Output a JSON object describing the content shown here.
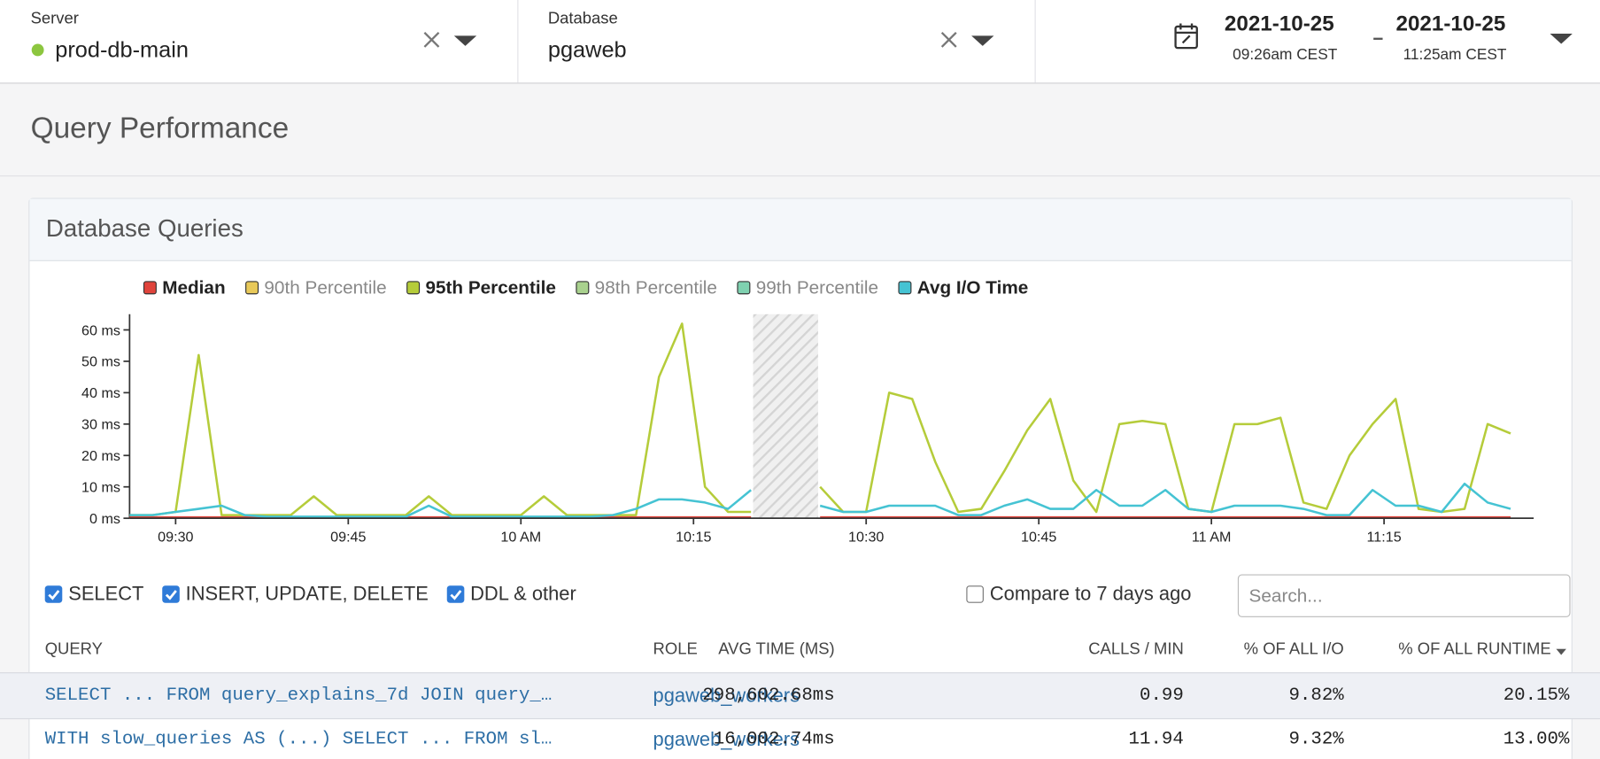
{
  "header": {
    "server": {
      "label": "Server",
      "value": "prod-db-main"
    },
    "database": {
      "label": "Database",
      "value": "pgaweb"
    },
    "date_range": {
      "start_date": "2021-10-25",
      "start_time": "09:26am CEST",
      "end_date": "2021-10-25",
      "end_time": "11:25am CEST"
    }
  },
  "page_title": "Query Performance",
  "panel_title": "Database Queries",
  "chart_data": {
    "type": "line",
    "x": [
      566,
      568,
      570,
      572,
      574,
      576,
      578,
      580,
      582,
      584,
      586,
      588,
      590,
      592,
      594,
      596,
      598,
      600,
      602,
      604,
      606,
      608,
      610,
      612,
      614,
      616,
      618,
      620,
      622,
      624,
      626,
      628,
      630,
      632,
      634,
      636,
      638,
      640,
      642,
      644,
      646,
      648,
      650,
      652,
      654,
      656,
      658,
      660,
      662,
      664,
      666,
      668,
      670,
      672,
      674,
      676,
      678,
      680,
      682,
      684,
      686
    ],
    "series": [
      {
        "name": "Median",
        "color": "#e0443c",
        "visible": true,
        "values": [
          0.3,
          0.3,
          0.3,
          0.3,
          0.3,
          0.3,
          0.3,
          0.3,
          0.3,
          0.3,
          0.3,
          0.3,
          0.3,
          0.3,
          0.3,
          0.3,
          0.3,
          0.3,
          0.3,
          0.3,
          0.3,
          0.3,
          0.3,
          0.3,
          0.3,
          0.3,
          0.3,
          0.3,
          null,
          null,
          0.3,
          0.3,
          0.3,
          0.3,
          0.3,
          0.3,
          0.3,
          0.3,
          0.3,
          0.3,
          0.3,
          0.3,
          0.3,
          0.3,
          0.3,
          0.3,
          0.3,
          0.3,
          0.3,
          0.3,
          0.3,
          0.3,
          0.3,
          0.3,
          0.3,
          0.3,
          0.3,
          0.3,
          0.3,
          0.3,
          0.3
        ]
      },
      {
        "name": "90th Percentile",
        "color": "#e8c95a",
        "visible": false
      },
      {
        "name": "95th Percentile",
        "color": "#b5cc3a",
        "visible": true,
        "values": [
          1,
          1,
          2,
          52,
          1,
          1,
          1,
          1,
          7,
          1,
          1,
          1,
          1,
          7,
          1,
          1,
          1,
          1,
          7,
          1,
          1,
          1,
          1,
          45,
          62,
          10,
          2,
          2,
          null,
          null,
          10,
          2,
          2,
          40,
          38,
          18,
          2,
          3,
          15,
          28,
          38,
          12,
          2,
          30,
          31,
          30,
          3,
          2,
          30,
          30,
          32,
          5,
          3,
          20,
          30,
          38,
          3,
          2,
          3,
          30,
          27
        ]
      },
      {
        "name": "98th Percentile",
        "color": "#a9d18e",
        "visible": false
      },
      {
        "name": "99th Percentile",
        "color": "#7fd1b0",
        "visible": false
      },
      {
        "name": "Avg I/O Time",
        "color": "#45c3d3",
        "visible": true,
        "values": [
          1,
          1,
          2,
          3,
          4,
          1,
          0.5,
          0.5,
          0.5,
          0.5,
          0.5,
          0.5,
          0.5,
          4,
          0.5,
          0.5,
          0.5,
          0.5,
          0.5,
          0.5,
          0.5,
          1,
          3,
          6,
          6,
          5,
          3,
          9,
          null,
          null,
          4,
          2,
          2,
          4,
          4,
          4,
          1,
          1,
          4,
          6,
          3,
          3,
          9,
          4,
          4,
          9,
          3,
          2,
          4,
          4,
          4,
          3,
          1,
          1,
          9,
          4,
          4,
          2,
          11,
          5,
          3
        ]
      }
    ],
    "xlim": [
      566,
      688
    ],
    "xticks": [
      {
        "value": 570,
        "label": "09:30"
      },
      {
        "value": 585,
        "label": "09:45"
      },
      {
        "value": 600,
        "label": "10 AM"
      },
      {
        "value": 615,
        "label": "10:15"
      },
      {
        "value": 630,
        "label": "10:30"
      },
      {
        "value": 645,
        "label": "10:45"
      },
      {
        "value": 660,
        "label": "11 AM"
      },
      {
        "value": 675,
        "label": "11:15"
      }
    ],
    "ylim": [
      0,
      65
    ],
    "yticks": [
      {
        "value": 0,
        "label": "0 ms"
      },
      {
        "value": 10,
        "label": "10 ms"
      },
      {
        "value": 20,
        "label": "20 ms"
      },
      {
        "value": 30,
        "label": "30 ms"
      },
      {
        "value": 40,
        "label": "40 ms"
      },
      {
        "value": 50,
        "label": "50 ms"
      },
      {
        "value": 60,
        "label": "60 ms"
      }
    ],
    "legend": "top"
  },
  "filters": [
    {
      "label": "SELECT",
      "checked": true
    },
    {
      "label": "INSERT, UPDATE, DELETE",
      "checked": true
    },
    {
      "label": "DDL & other",
      "checked": true
    }
  ],
  "compare": {
    "label": "Compare to 7 days ago",
    "checked": false
  },
  "search_placeholder": "Search...",
  "table": {
    "columns": [
      "QUERY",
      "ROLE",
      "AVG TIME (MS)",
      "CALLS / MIN",
      "% OF ALL I/O",
      "% OF ALL RUNTIME"
    ],
    "rows": [
      [
        "SELECT ... FROM query_explains_7d JOIN query_…",
        "pgaweb_workers",
        "298,602.68ms",
        "0.99",
        "9.82%",
        "20.15%"
      ],
      [
        "WITH slow_queries AS (...) SELECT ... FROM sl…",
        "pgaweb_workers",
        "16,002.74ms",
        "11.94",
        "9.32%",
        "13.00%"
      ]
    ]
  }
}
